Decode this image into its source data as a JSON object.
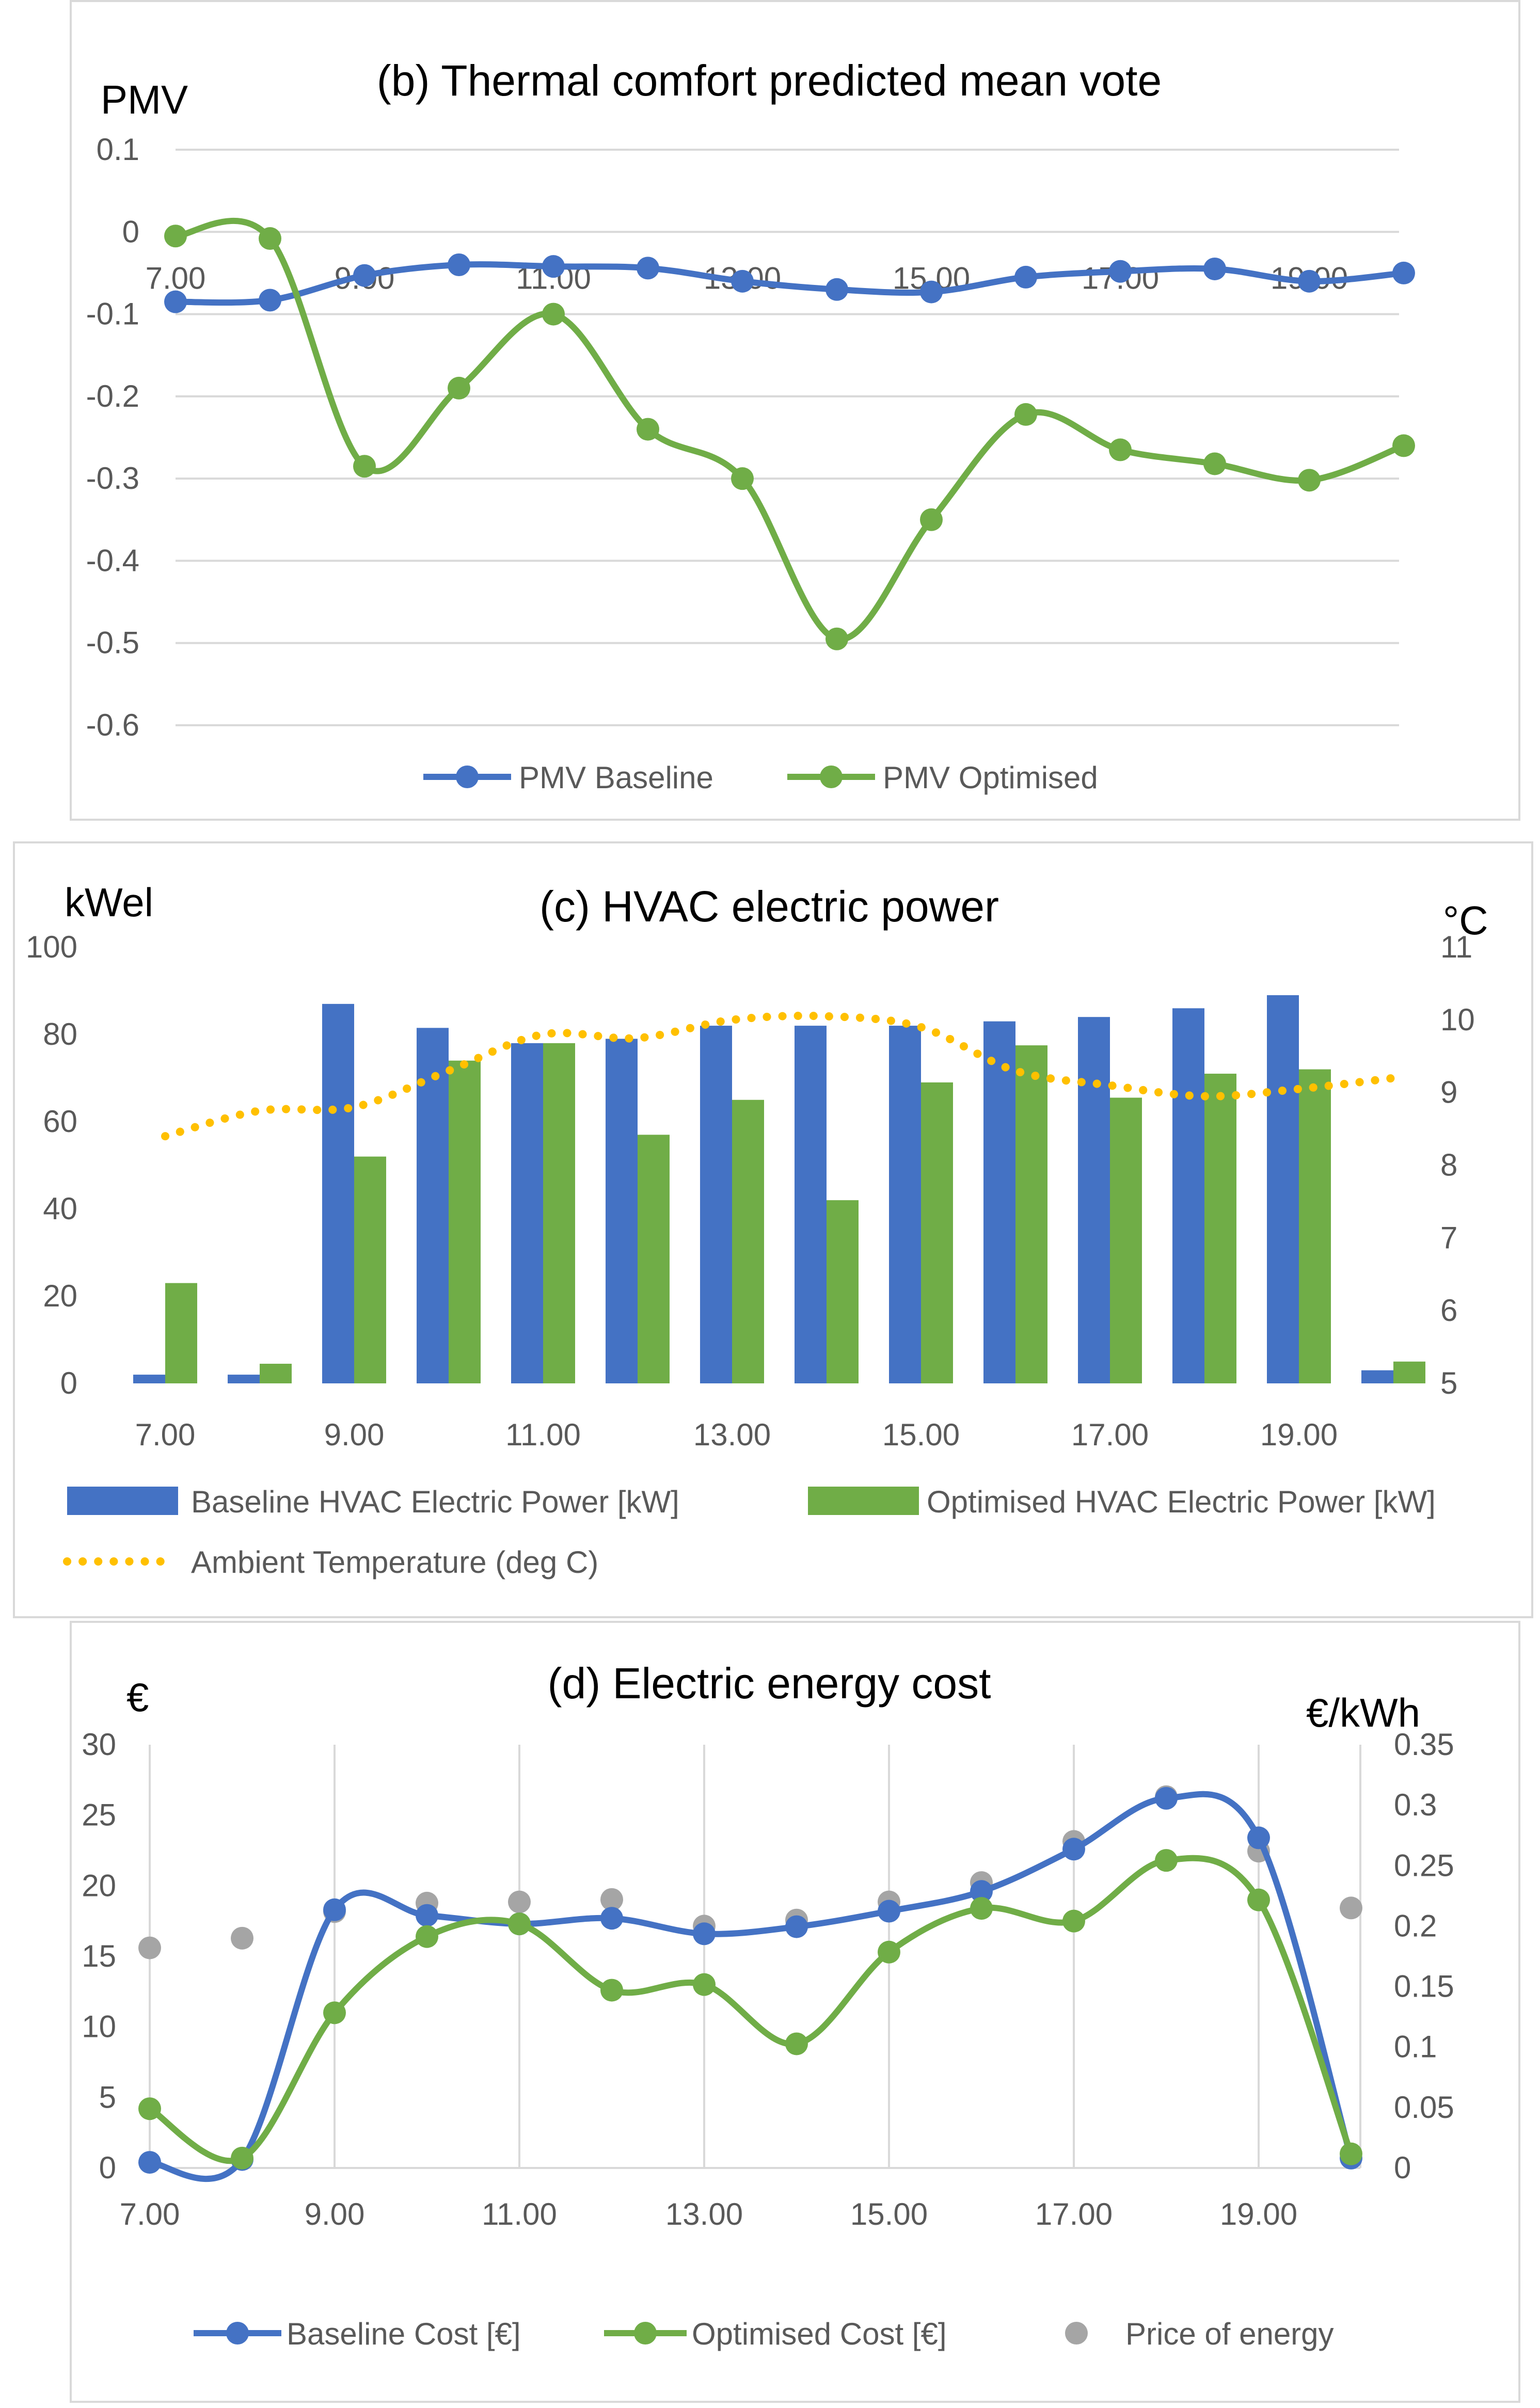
{
  "colors": {
    "baseline": "#4472C4",
    "baseline_light": "#6A8FD0",
    "optimised": "#70AD47",
    "ambient": "#FFC000",
    "price": "#A5A5A5",
    "grid": "#D9D9D9"
  },
  "chart_data": [
    {
      "type": "line",
      "title": "(b) Thermal comfort predicted mean vote",
      "ylabel": "PMV",
      "xlabel": "",
      "ylim": [
        -0.6,
        0.1
      ],
      "yticks": [
        "0.1",
        "0",
        "-0.1",
        "-0.2",
        "-0.3",
        "-0.4",
        "-0.5",
        "-0.6"
      ],
      "x": [
        7,
        8,
        9,
        10,
        11,
        12,
        13,
        14,
        15,
        16,
        17,
        18,
        19,
        20
      ],
      "xtick_labels": [
        "7.00",
        "9.00",
        "11.00",
        "13.00",
        "15.00",
        "17.00",
        "19.00"
      ],
      "series": [
        {
          "name": "PMV Baseline",
          "values": [
            -0.085,
            -0.083,
            -0.053,
            -0.04,
            -0.042,
            -0.044,
            -0.06,
            -0.07,
            -0.073,
            -0.055,
            -0.048,
            -0.045,
            -0.06,
            -0.05
          ]
        },
        {
          "name": "PMV Optimised",
          "values": [
            -0.005,
            -0.008,
            -0.285,
            -0.19,
            -0.1,
            -0.24,
            -0.3,
            -0.495,
            -0.35,
            -0.222,
            -0.265,
            -0.282,
            -0.302,
            -0.26
          ]
        }
      ],
      "legend": [
        "PMV Baseline",
        "PMV Optimised"
      ]
    },
    {
      "type": "bar",
      "title": "(c) HVAC electric power",
      "ylabel": "kWel",
      "ylabel_right": "°C",
      "ylim": [
        0,
        100
      ],
      "yticks": [
        "100",
        "80",
        "60",
        "40",
        "20",
        "0"
      ],
      "ylim_right": [
        5,
        11
      ],
      "yticks_right": [
        "11",
        "10",
        "9",
        "8",
        "7",
        "6",
        "5"
      ],
      "x": [
        7,
        8,
        9,
        10,
        11,
        12,
        13,
        14,
        15,
        16,
        17,
        18,
        19,
        20
      ],
      "xtick_labels": [
        "7.00",
        "9.00",
        "11.00",
        "13.00",
        "15.00",
        "17.00",
        "19.00"
      ],
      "series": [
        {
          "name": "Baseline HVAC Electric  Power [kW]",
          "values": [
            2,
            2,
            87,
            81.5,
            78,
            79,
            82,
            82,
            82,
            83,
            84,
            86,
            89,
            3
          ]
        },
        {
          "name": "Optimised HVAC Electric  Power [kW]",
          "values": [
            23,
            4.5,
            52,
            74,
            78,
            57,
            65,
            42,
            69,
            77.5,
            65.5,
            71,
            72,
            5
          ]
        },
        {
          "name": "Ambient Temperature (deg C)",
          "axis": "right",
          "values": [
            8.4,
            8.75,
            8.8,
            9.3,
            9.8,
            9.75,
            10.0,
            10.05,
            9.9,
            9.3,
            9.1,
            8.95,
            9.05,
            9.2
          ]
        }
      ],
      "legend": [
        "Baseline HVAC Electric  Power [kW]",
        "Optimised HVAC Electric  Power [kW]",
        "Ambient Temperature (deg C)"
      ]
    },
    {
      "type": "line",
      "title": "(d) Electric energy cost",
      "ylabel": "€",
      "ylabel_right": "€/kWh",
      "ylim": [
        0,
        30
      ],
      "yticks": [
        "30",
        "25",
        "20",
        "15",
        "10",
        "5",
        "0"
      ],
      "ylim_right": [
        0,
        0.35
      ],
      "yticks_right": [
        "0.35",
        "0.3",
        "0.25",
        "0.2",
        "0.15",
        "0.1",
        "0.05",
        "0"
      ],
      "x": [
        7,
        8,
        9,
        10,
        11,
        12,
        13,
        14,
        15,
        16,
        17,
        18,
        19,
        20
      ],
      "xtick_labels": [
        "7.00",
        "9.00",
        "11.00",
        "13.00",
        "15.00",
        "17.00",
        "19.00"
      ],
      "series": [
        {
          "name": "Baseline Cost [€]",
          "values": [
            0.4,
            0.6,
            18.3,
            17.9,
            17.3,
            17.7,
            16.6,
            17.1,
            18.2,
            19.6,
            22.6,
            26.2,
            23.4,
            0.7
          ]
        },
        {
          "name": "Optimised Cost [€]",
          "values": [
            4.2,
            0.7,
            11.0,
            16.4,
            17.3,
            12.6,
            13.0,
            8.8,
            15.3,
            18.4,
            17.5,
            21.8,
            19.0,
            1.0
          ]
        },
        {
          "name": "Price of energy",
          "axis": "right",
          "values": [
            0.182,
            0.19,
            0.212,
            0.219,
            0.22,
            0.222,
            0.2,
            0.205,
            0.22,
            0.236,
            0.27,
            0.307,
            0.262,
            0.215
          ]
        }
      ],
      "legend": [
        "Baseline Cost [€]",
        "Optimised Cost [€]",
        "Price of energy"
      ]
    }
  ]
}
